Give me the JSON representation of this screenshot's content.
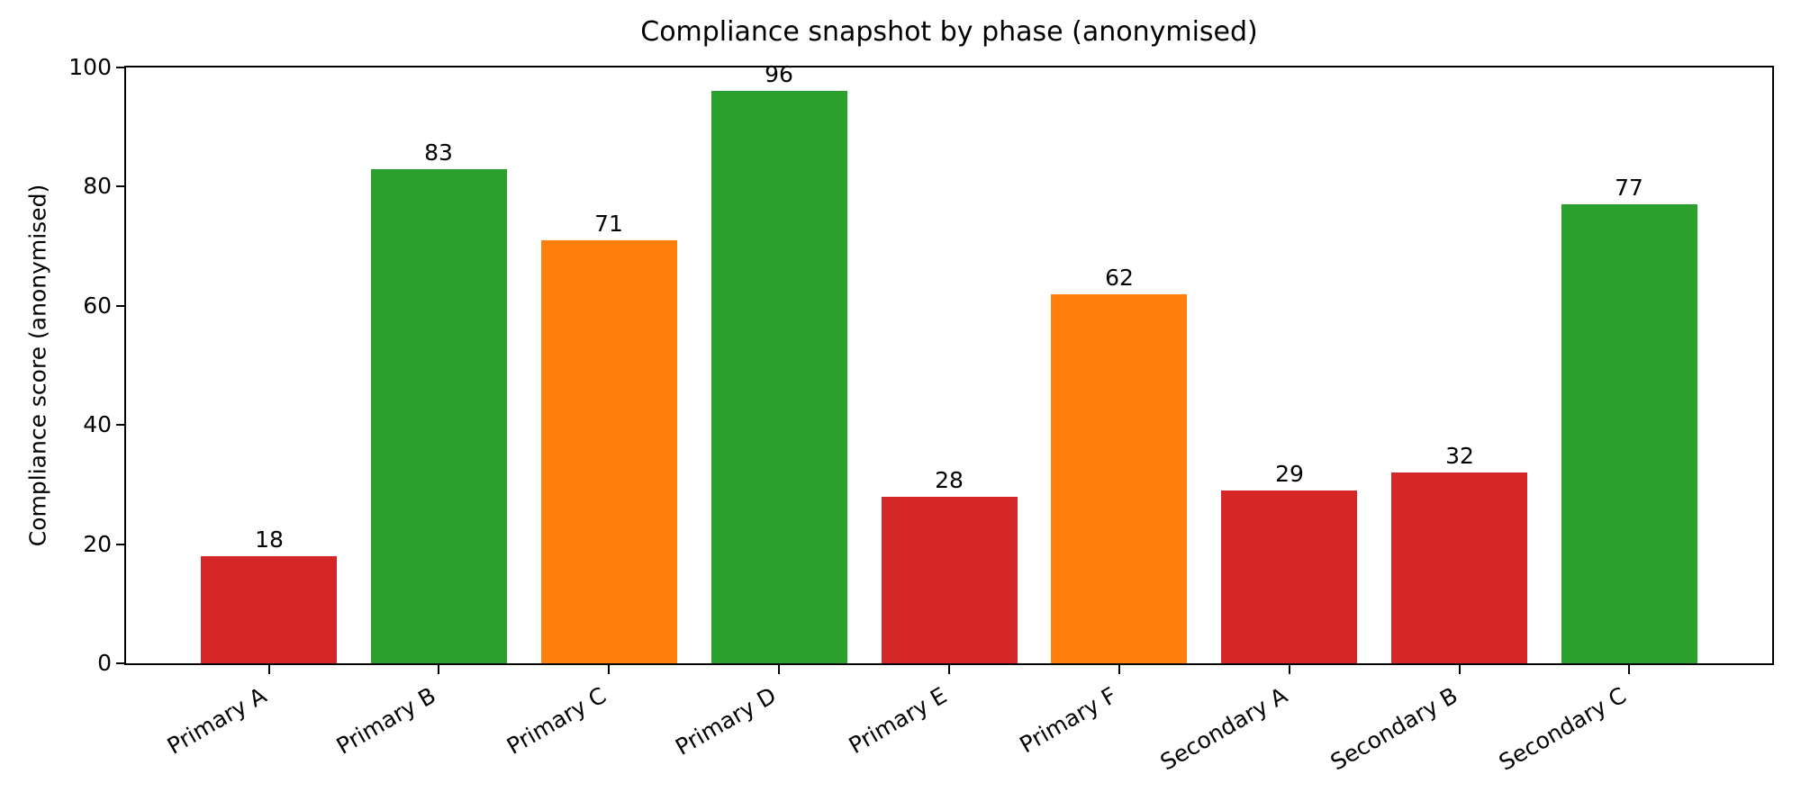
{
  "figure": {
    "title": "Compliance snapshot by phase (anonymised)",
    "ylabel": "Compliance score (anonymised)"
  },
  "colors": {
    "red": "#d62728",
    "orange": "#ff7f0e",
    "green": "#2ca02c",
    "axis": "#000000",
    "background": "#ffffff"
  },
  "chart_data": {
    "type": "bar",
    "title": "Compliance snapshot by phase (anonymised)",
    "xlabel": "",
    "ylabel": "Compliance score (anonymised)",
    "categories": [
      "Primary A",
      "Primary B",
      "Primary C",
      "Primary D",
      "Primary E",
      "Primary F",
      "Secondary A",
      "Secondary B",
      "Secondary C"
    ],
    "values": [
      18,
      83,
      71,
      96,
      28,
      62,
      29,
      32,
      77
    ],
    "value_labels": [
      "18",
      "83",
      "71",
      "96",
      "28",
      "62",
      "29",
      "32",
      "77"
    ],
    "bar_color_names": [
      "red",
      "green",
      "orange",
      "green",
      "red",
      "orange",
      "red",
      "red",
      "green"
    ],
    "bar_colors": [
      "#d62728",
      "#2ca02c",
      "#ff7f0e",
      "#2ca02c",
      "#d62728",
      "#ff7f0e",
      "#d62728",
      "#d62728",
      "#2ca02c"
    ],
    "ylim": [
      0,
      100
    ],
    "yticks": [
      0,
      20,
      40,
      60,
      80,
      100
    ],
    "x_tick_rotation_deg": 30,
    "grid": false,
    "legend": null,
    "bar_label_position": "above"
  }
}
